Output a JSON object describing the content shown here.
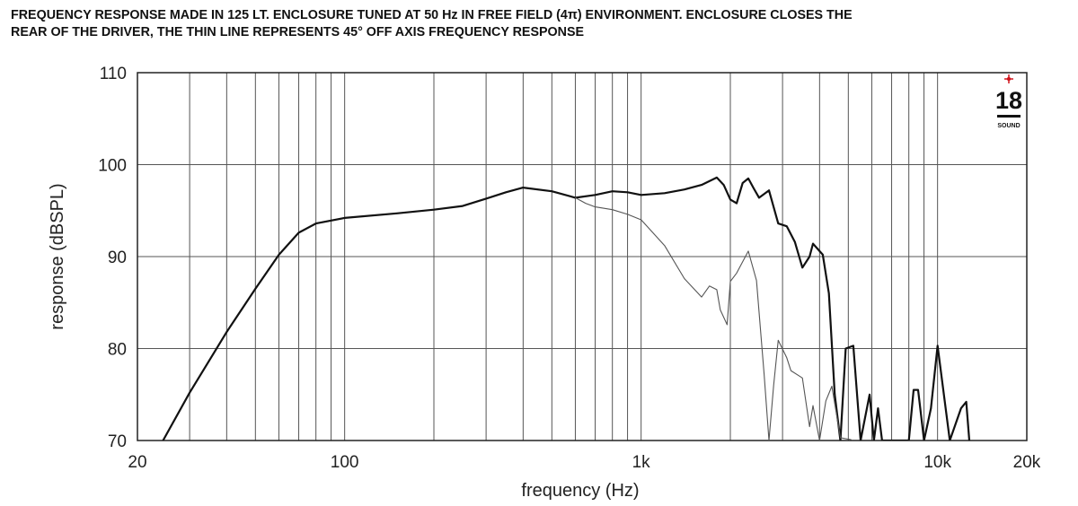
{
  "caption": {
    "line1": "FREQUENCY RESPONSE MADE IN 125 LT. ENCLOSURE TUNED AT 50 Hz IN FREE FIELD (4π) ENVIRONMENT. ENCLOSURE CLOSES THE",
    "line2": "REAR OF THE DRIVER, THE THIN LINE REPRESENTS 45° OFF AXIS FREQUENCY RESPONSE"
  },
  "logo": {
    "number": "18",
    "text_small": "SOUND",
    "accent": "#d0141c"
  },
  "chart_data": {
    "type": "line",
    "xlabel": "frequency (Hz)",
    "ylabel": "response (dBSPL)",
    "xscale": "log",
    "xlim": [
      20,
      20000
    ],
    "ylim": [
      70,
      110
    ],
    "grid": true,
    "x_tick_labels": [
      {
        "value": 20,
        "label": "20"
      },
      {
        "value": 100,
        "label": "100"
      },
      {
        "value": 1000,
        "label": "1k"
      },
      {
        "value": 10000,
        "label": "10k"
      },
      {
        "value": 20000,
        "label": "20k"
      }
    ],
    "y_ticks": [
      70,
      80,
      90,
      100,
      110
    ],
    "x_gridlines": [
      30,
      40,
      50,
      60,
      70,
      80,
      90,
      100,
      200,
      300,
      400,
      500,
      600,
      700,
      800,
      900,
      1000,
      2000,
      3000,
      4000,
      5000,
      6000,
      7000,
      8000,
      9000,
      10000
    ],
    "series": [
      {
        "key": "on_axis",
        "stroke": "#111111",
        "weight": "thick",
        "points": [
          [
            24.4,
            70.0
          ],
          [
            30,
            75.2
          ],
          [
            40,
            81.8
          ],
          [
            50,
            86.5
          ],
          [
            60,
            90.2
          ],
          [
            70,
            92.6
          ],
          [
            80,
            93.6
          ],
          [
            100,
            94.2
          ],
          [
            150,
            94.7
          ],
          [
            200,
            95.1
          ],
          [
            250,
            95.5
          ],
          [
            300,
            96.3
          ],
          [
            350,
            97.0
          ],
          [
            400,
            97.5
          ],
          [
            500,
            97.1
          ],
          [
            600,
            96.4
          ],
          [
            700,
            96.7
          ],
          [
            800,
            97.1
          ],
          [
            900,
            97.0
          ],
          [
            1000,
            96.7
          ],
          [
            1200,
            96.9
          ],
          [
            1400,
            97.3
          ],
          [
            1600,
            97.8
          ],
          [
            1800,
            98.6
          ],
          [
            1900,
            97.8
          ],
          [
            2000,
            96.2
          ],
          [
            2100,
            95.8
          ],
          [
            2200,
            98.0
          ],
          [
            2300,
            98.5
          ],
          [
            2400,
            97.4
          ],
          [
            2500,
            96.4
          ],
          [
            2700,
            97.2
          ],
          [
            2900,
            93.6
          ],
          [
            3100,
            93.3
          ],
          [
            3300,
            91.6
          ],
          [
            3500,
            88.8
          ],
          [
            3700,
            90.0
          ],
          [
            3800,
            91.4
          ],
          [
            4100,
            90.2
          ],
          [
            4300,
            86.0
          ],
          [
            4500,
            75.0
          ],
          [
            4700,
            70.0
          ],
          [
            4900,
            80.0
          ],
          [
            5200,
            80.3
          ],
          [
            5500,
            70.0
          ],
          [
            5900,
            75.0
          ],
          [
            6100,
            70.0
          ],
          [
            6300,
            73.5
          ],
          [
            6500,
            70.0
          ],
          [
            8000,
            70.0
          ],
          [
            8300,
            75.5
          ],
          [
            8600,
            75.5
          ],
          [
            9000,
            70.0
          ],
          [
            9500,
            73.5
          ],
          [
            10000,
            80.3
          ],
          [
            10500,
            75.0
          ],
          [
            11000,
            70.0
          ],
          [
            12000,
            73.5
          ],
          [
            12500,
            74.2
          ],
          [
            12800,
            70.0
          ]
        ]
      },
      {
        "key": "off_axis_45",
        "stroke": "#555555",
        "weight": "thin",
        "points": [
          [
            600,
            96.4
          ],
          [
            650,
            95.8
          ],
          [
            700,
            95.4
          ],
          [
            800,
            95.1
          ],
          [
            900,
            94.6
          ],
          [
            1000,
            94.0
          ],
          [
            1200,
            91.2
          ],
          [
            1400,
            87.6
          ],
          [
            1600,
            85.6
          ],
          [
            1700,
            86.8
          ],
          [
            1800,
            86.4
          ],
          [
            1850,
            84.2
          ],
          [
            1950,
            82.6
          ],
          [
            2000,
            87.3
          ],
          [
            2100,
            88.2
          ],
          [
            2300,
            90.6
          ],
          [
            2450,
            87.4
          ],
          [
            2600,
            77.2
          ],
          [
            2700,
            70.0
          ],
          [
            2800,
            76.0
          ],
          [
            2900,
            80.9
          ],
          [
            3100,
            79.0
          ],
          [
            3200,
            77.6
          ],
          [
            3500,
            76.8
          ],
          [
            3700,
            71.5
          ],
          [
            3800,
            73.8
          ],
          [
            4000,
            70.0
          ],
          [
            4200,
            74.3
          ],
          [
            4400,
            75.9
          ],
          [
            4700,
            70.3
          ],
          [
            5100,
            70.1
          ]
        ]
      }
    ]
  }
}
